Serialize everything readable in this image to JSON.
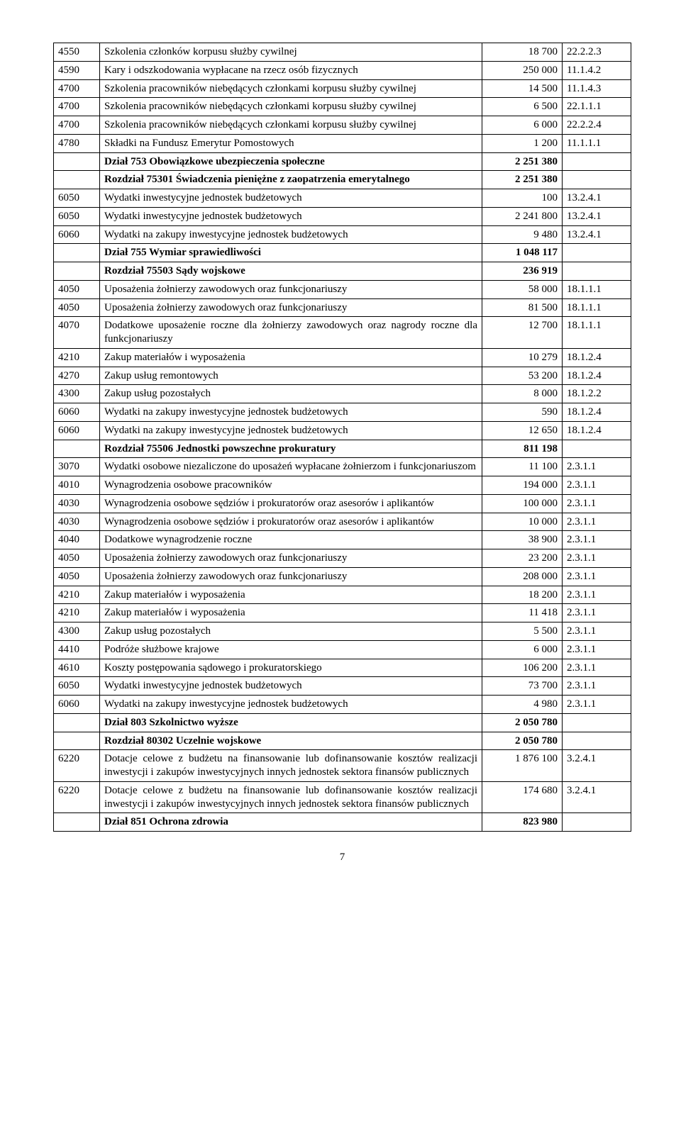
{
  "footer": "7",
  "rows": [
    {
      "code": "4550",
      "desc": "Szkolenia członków korpusu służby cywilnej",
      "val": "18 700",
      "ref": "22.2.2.3"
    },
    {
      "code": "4590",
      "desc": "Kary i odszkodowania wypłacane na rzecz osób fizycznych",
      "val": "250 000",
      "ref": "11.1.4.2"
    },
    {
      "code": "4700",
      "desc": "Szkolenia pracowników niebędących członkami korpusu służby cywilnej",
      "val": "14 500",
      "ref": "11.1.4.3"
    },
    {
      "code": "4700",
      "desc": "Szkolenia pracowników niebędących członkami korpusu służby cywilnej",
      "val": "6 500",
      "ref": "22.1.1.1"
    },
    {
      "code": "4700",
      "desc": "Szkolenia pracowników niebędących członkami korpusu służby cywilnej",
      "val": "6 000",
      "ref": "22.2.2.4"
    },
    {
      "code": "4780",
      "desc": "Składki na Fundusz Emerytur Pomostowych",
      "val": "1 200",
      "ref": "11.1.1.1"
    },
    {
      "bold": true,
      "code": "",
      "desc": "Dział 753 Obowiązkowe ubezpieczenia społeczne",
      "val": "2 251 380",
      "ref": ""
    },
    {
      "bold": true,
      "code": "",
      "desc": "Rozdział 75301 Świadczenia pieniężne z zaopatrzenia emerytalnego",
      "val": "2 251 380",
      "ref": ""
    },
    {
      "code": "6050",
      "desc": "Wydatki inwestycyjne jednostek budżetowych",
      "val": "100",
      "ref": "13.2.4.1"
    },
    {
      "code": "6050",
      "desc": "Wydatki inwestycyjne jednostek budżetowych",
      "val": "2 241 800",
      "ref": "13.2.4.1"
    },
    {
      "code": "6060",
      "desc": "Wydatki na zakupy inwestycyjne jednostek budżetowych",
      "val": "9 480",
      "ref": "13.2.4.1"
    },
    {
      "bold": true,
      "code": "",
      "desc": "Dział 755 Wymiar sprawiedliwości",
      "val": "1 048 117",
      "ref": ""
    },
    {
      "bold": true,
      "code": "",
      "desc": "Rozdział 75503 Sądy wojskowe",
      "val": "236 919",
      "ref": ""
    },
    {
      "code": "4050",
      "desc": "Uposażenia żołnierzy zawodowych oraz funkcjonariuszy",
      "val": "58 000",
      "ref": "18.1.1.1"
    },
    {
      "code": "4050",
      "desc": "Uposażenia żołnierzy zawodowych oraz funkcjonariuszy",
      "val": "81 500",
      "ref": "18.1.1.1"
    },
    {
      "code": "4070",
      "desc": "Dodatkowe uposażenie roczne dla żołnierzy zawodowych oraz nagrody roczne dla funkcjonariuszy",
      "val": "12 700",
      "ref": "18.1.1.1"
    },
    {
      "code": "4210",
      "desc": "Zakup materiałów i wyposażenia",
      "val": "10 279",
      "ref": "18.1.2.4"
    },
    {
      "code": "4270",
      "desc": "Zakup usług remontowych",
      "val": "53 200",
      "ref": "18.1.2.4"
    },
    {
      "code": "4300",
      "desc": "Zakup usług pozostałych",
      "val": "8 000",
      "ref": "18.1.2.2"
    },
    {
      "code": "6060",
      "desc": "Wydatki na zakupy inwestycyjne jednostek budżetowych",
      "val": "590",
      "ref": "18.1.2.4"
    },
    {
      "code": "6060",
      "desc": "Wydatki na zakupy inwestycyjne jednostek budżetowych",
      "val": "12 650",
      "ref": "18.1.2.4"
    },
    {
      "bold": true,
      "code": "",
      "desc": "Rozdział 75506 Jednostki powszechne prokuratury",
      "val": "811 198",
      "ref": ""
    },
    {
      "code": "3070",
      "desc": "Wydatki osobowe niezaliczone do uposażeń wypłacane żołnierzom i funkcjonariuszom",
      "val": "11 100",
      "ref": "2.3.1.1"
    },
    {
      "code": "4010",
      "desc": "Wynagrodzenia osobowe pracowników",
      "val": "194 000",
      "ref": "2.3.1.1"
    },
    {
      "code": "4030",
      "desc": "Wynagrodzenia osobowe sędziów i prokuratorów oraz asesorów i aplikantów",
      "val": "100 000",
      "ref": "2.3.1.1"
    },
    {
      "code": "4030",
      "desc": "Wynagrodzenia osobowe sędziów i prokuratorów oraz asesorów i aplikantów",
      "val": "10 000",
      "ref": "2.3.1.1"
    },
    {
      "code": "4040",
      "desc": "Dodatkowe wynagrodzenie roczne",
      "val": "38 900",
      "ref": "2.3.1.1"
    },
    {
      "code": "4050",
      "desc": "Uposażenia żołnierzy zawodowych oraz funkcjonariuszy",
      "val": "23 200",
      "ref": "2.3.1.1"
    },
    {
      "code": "4050",
      "desc": "Uposażenia żołnierzy zawodowych oraz funkcjonariuszy",
      "val": "208 000",
      "ref": "2.3.1.1"
    },
    {
      "code": "4210",
      "desc": "Zakup materiałów i wyposażenia",
      "val": "18 200",
      "ref": "2.3.1.1"
    },
    {
      "code": "4210",
      "desc": "Zakup materiałów i wyposażenia",
      "val": "11 418",
      "ref": "2.3.1.1"
    },
    {
      "code": "4300",
      "desc": "Zakup usług pozostałych",
      "val": "5 500",
      "ref": "2.3.1.1"
    },
    {
      "code": "4410",
      "desc": "Podróże służbowe krajowe",
      "val": "6 000",
      "ref": "2.3.1.1"
    },
    {
      "code": "4610",
      "desc": "Koszty postępowania sądowego i prokuratorskiego",
      "val": "106 200",
      "ref": "2.3.1.1"
    },
    {
      "code": "6050",
      "desc": "Wydatki inwestycyjne jednostek budżetowych",
      "val": "73 700",
      "ref": "2.3.1.1"
    },
    {
      "code": "6060",
      "desc": "Wydatki na zakupy inwestycyjne jednostek budżetowych",
      "val": "4 980",
      "ref": "2.3.1.1"
    },
    {
      "bold": true,
      "code": "",
      "desc": "Dział 803 Szkolnictwo wyższe",
      "val": "2 050 780",
      "ref": ""
    },
    {
      "bold": true,
      "code": "",
      "desc": "Rozdział 80302 Uczelnie wojskowe",
      "val": "2 050 780",
      "ref": ""
    },
    {
      "code": "6220",
      "desc": "Dotacje celowe z budżetu na finansowanie lub dofinansowanie kosztów realizacji inwestycji i zakupów inwestycyjnych innych jednostek sektora finansów publicznych",
      "val": "1 876 100",
      "ref": "3.2.4.1"
    },
    {
      "code": "6220",
      "desc": "Dotacje celowe z budżetu na finansowanie lub dofinansowanie kosztów realizacji inwestycji i zakupów inwestycyjnych innych jednostek sektora finansów publicznych",
      "val": "174 680",
      "ref": "3.2.4.1"
    },
    {
      "bold": true,
      "code": "",
      "desc": "Dział 851 Ochrona zdrowia",
      "val": "823 980",
      "ref": ""
    }
  ]
}
